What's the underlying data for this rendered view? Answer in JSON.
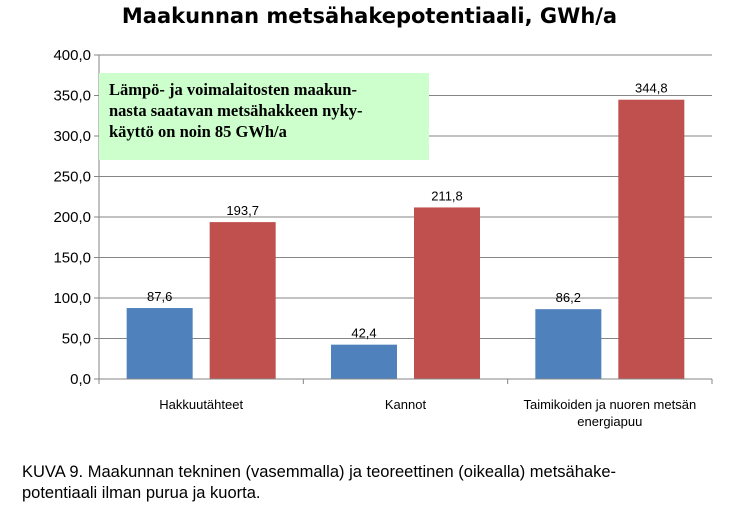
{
  "chart_data": {
    "type": "bar",
    "title": "Maakunnan metsähakepotentiaali, GWh/a",
    "categories": [
      "Hakkuutähteet",
      "Kannot",
      "Taimikoiden ja nuoren metsän energiapuu"
    ],
    "series": [
      {
        "values": [
          87.6,
          42.4,
          86.2
        ],
        "labels": [
          "87,6",
          "42,4",
          "86,2"
        ],
        "color": "#4f81bd"
      },
      {
        "values": [
          193.7,
          211.8,
          344.8
        ],
        "labels": [
          "193,7",
          "211,8",
          "344,8"
        ],
        "color": "#c0504d"
      }
    ],
    "ylim": [
      0,
      400
    ],
    "yticks": [
      0,
      50,
      100,
      150,
      200,
      250,
      300,
      350,
      400
    ],
    "ytick_labels": [
      "0,0",
      "50,0",
      "100,0",
      "150,0",
      "200,0",
      "250,0",
      "300,0",
      "350,0",
      "400,0"
    ],
    "grid": true,
    "legend": "none",
    "annotation": [
      "Lämpö- ja voimalaitosten maakun-",
      "nasta saatavan metsähakkeen nyky-",
      "käyttö on noin 85 GWh/a"
    ],
    "annotation_color": "#ccffcc"
  },
  "caption": [
    "KUVA 9. Maakunnan tekninen (vasemmalla) ja teoreettinen (oikealla) metsähake-",
    "potentiaali ilman purua ja kuorta."
  ]
}
